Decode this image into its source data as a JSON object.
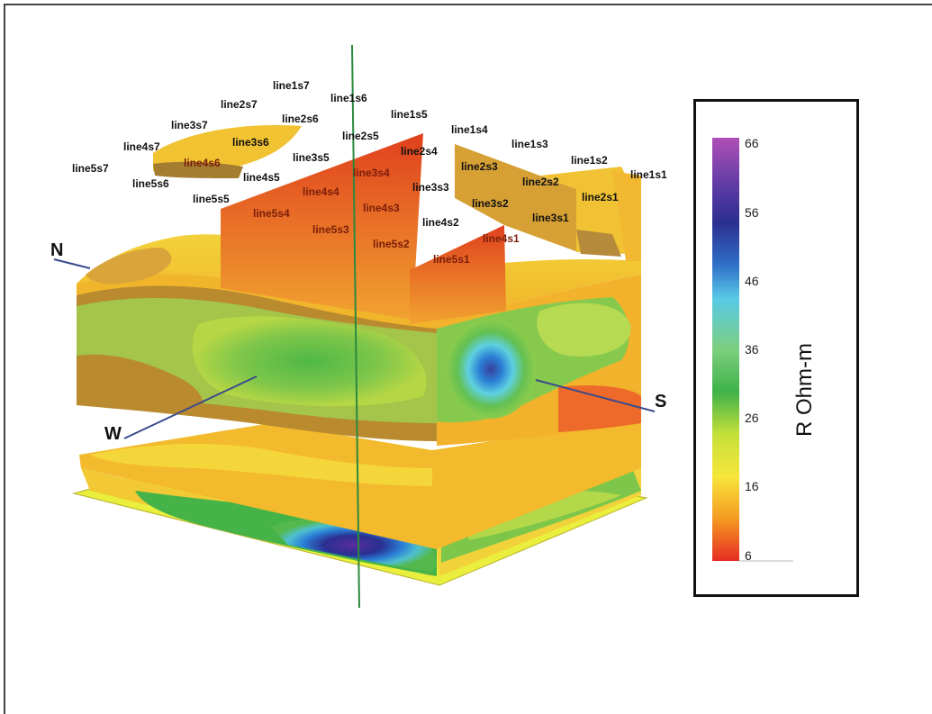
{
  "directions": {
    "north": "N",
    "south": "S",
    "west": "W"
  },
  "line_labels": [
    "line1s7",
    "line1s6",
    "line1s5",
    "line1s4",
    "line1s3",
    "line1s2",
    "line1s1",
    "line2s7",
    "line2s6",
    "line2s5",
    "line2s4",
    "line2s3",
    "line2s2",
    "line2s1",
    "line3s7",
    "line3s6",
    "line3s5",
    "line3s4",
    "line3s3",
    "line3s2",
    "line3s1",
    "line4s7",
    "line4s6",
    "line4s5",
    "line4s4",
    "line4s3",
    "line4s2",
    "line4s1",
    "line5s7",
    "line5s6",
    "line5s5",
    "line5s4",
    "line5s3",
    "line5s2",
    "line5s1"
  ],
  "legend": {
    "title": "R Ohm-m",
    "ticks": [
      "66",
      "56",
      "46",
      "36",
      "26",
      "16",
      "6"
    ],
    "colors": [
      "#9b3fb5",
      "#2b2f8f",
      "#2a7fd6",
      "#55c9e8",
      "#3fb24a",
      "#f6e63a",
      "#f59a22",
      "#e8342a"
    ]
  }
}
